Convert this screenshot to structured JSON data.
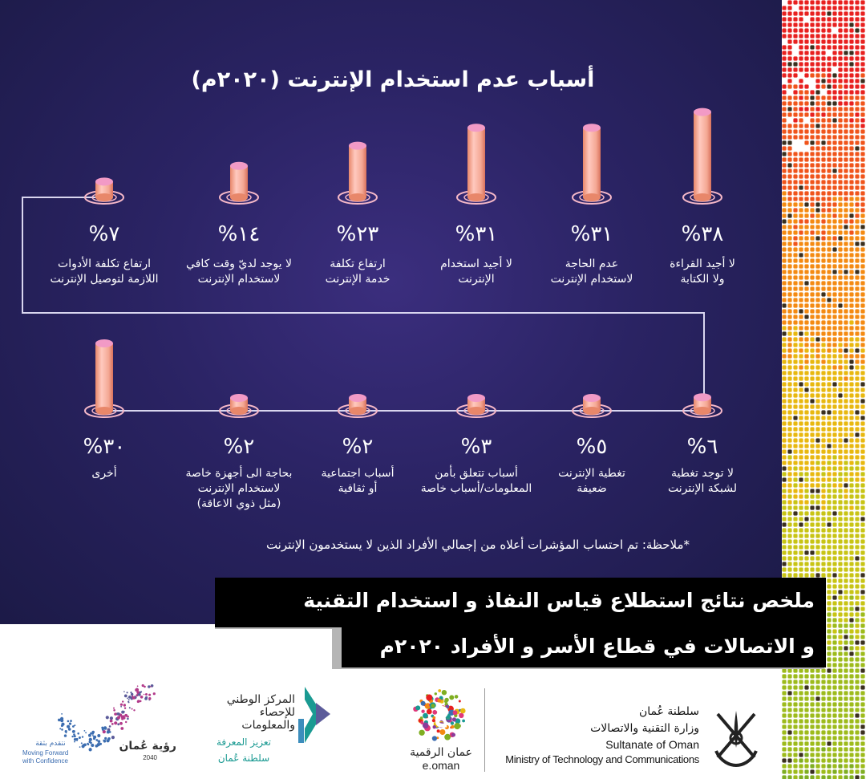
{
  "chart_data": {
    "type": "bar",
    "title": "أسباب عدم استخدام الإنترنت (٢٠٢٠م)",
    "unit": "%",
    "note": "*ملاحظة: تم احتساب المؤشرات أعلاه من إجمالي الأفراد الذين لا يستخدمون الإنترنت",
    "ylim": [
      0,
      40
    ],
    "series": [
      {
        "values": [
          38,
          31,
          31,
          23,
          14,
          7,
          6,
          5,
          3,
          2,
          2,
          30
        ]
      }
    ],
    "items": [
      {
        "value": 38,
        "display": "%٣٨",
        "label": [
          "لا أجيد القراءة",
          "ولا الكتابة"
        ]
      },
      {
        "value": 31,
        "display": "%٣١",
        "label": [
          "عدم الحاجة",
          "لاستخدام الإنترنت"
        ]
      },
      {
        "value": 31,
        "display": "%٣١",
        "label": [
          "لا أجيد استخدام",
          "الإنترنت"
        ]
      },
      {
        "value": 23,
        "display": "%٢٣",
        "label": [
          "ارتفاع تكلفة",
          "خدمة الإنترنت"
        ]
      },
      {
        "value": 14,
        "display": "%١٤",
        "label": [
          "لا يوجد لديّ وقت كافي",
          "لاستخدام الإنترنت"
        ]
      },
      {
        "value": 7,
        "display": "%٧",
        "label": [
          "ارتفاع تكلفة الأدوات",
          "اللازمة لتوصيل الإنترنت"
        ]
      },
      {
        "value": 6,
        "display": "%٦",
        "label": [
          "لا توجد تغطية",
          "لشبكة الإنترنت"
        ]
      },
      {
        "value": 5,
        "display": "%٥",
        "label": [
          "تغطية الإنترنت",
          "ضعيفة"
        ]
      },
      {
        "value": 3,
        "display": "%٣",
        "label": [
          "أسباب تتعلق بأمن",
          "المعلومات/أسباب خاصة"
        ]
      },
      {
        "value": 2,
        "display": "%٢",
        "label": [
          "أسباب اجتماعية",
          "أو ثقافية"
        ]
      },
      {
        "value": 2,
        "display": "%٢",
        "label": [
          "بحاجة الى أجهزة خاصة",
          "لاستخدام الإنترنت",
          "(مثل ذوي الاعاقة)"
        ]
      },
      {
        "value": 30,
        "display": "%٣٠",
        "label": [
          "أخرى"
        ]
      }
    ]
  },
  "banner": {
    "line1": "ملخص نتائج استطلاع قياس النفاذ و استخدام التقنية",
    "line2": "و الاتصالات في قطاع الأسر و الأفراد ٢٠٢٠م"
  },
  "footer": {
    "ministry_ar_1": "سلطنة عُمان",
    "ministry_ar_2": "وزارة التقنية والاتصالات",
    "ministry_en_1": "Sultanate of Oman",
    "ministry_en_2": "Ministry of Technology and Communications",
    "eoman_ar": "عمان الرقمية",
    "eoman_en": "e.oman",
    "ncsi_1": "المركز الوطني",
    "ncsi_2": "للإحصاء",
    "ncsi_3": "والمعلومات",
    "ncsi_4": "تعزيز المعرفة",
    "ncsi_5": "سلطنة عُمان",
    "vision_1": "رؤية عُمان",
    "vision_2": "2040",
    "vision_3": "نتقدم بثقة",
    "vision_4": "Moving Forward",
    "vision_5": "with Confidence"
  },
  "colors": {
    "panel": "#2a2363",
    "bar_top": "#f29ac6",
    "bar_body": "#f7b4a8",
    "line": "#d9d6ef",
    "banner_bg": "#000000",
    "banner_shadow": "#b5b5b5",
    "ministry_text": "#111111",
    "ncsi_green": "#1a9a92"
  }
}
